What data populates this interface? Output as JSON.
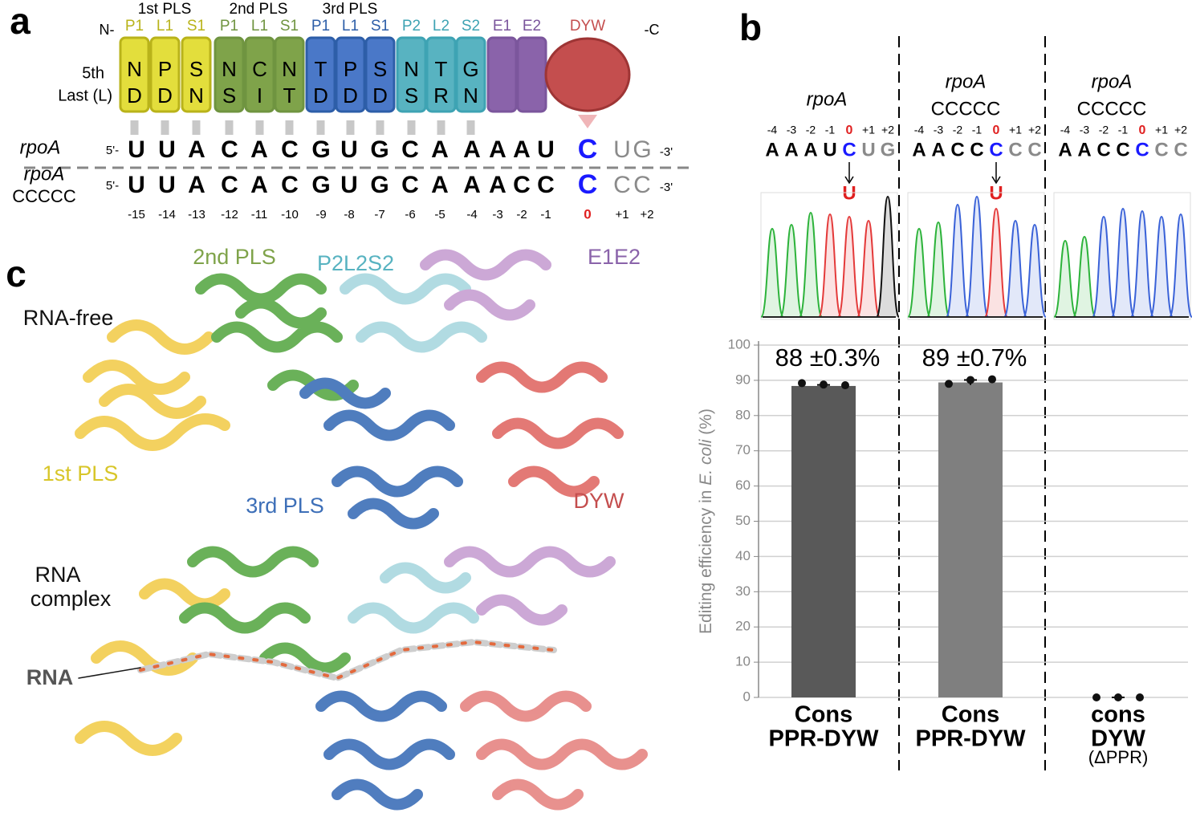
{
  "panel_labels": [
    "a",
    "b",
    "c"
  ],
  "panel_a": {
    "n_term": "N-",
    "c_term": "-C",
    "groups": [
      "1st PLS",
      "2nd PLS",
      "3rd PLS"
    ],
    "row_labels": [
      "5th",
      "Last (L)"
    ],
    "motifs": [
      {
        "name": "P1",
        "fifth": "N",
        "last": "D",
        "color": "#e3de3c"
      },
      {
        "name": "L1",
        "fifth": "P",
        "last": "D",
        "color": "#e3de3c"
      },
      {
        "name": "S1",
        "fifth": "S",
        "last": "N",
        "color": "#e3de3c"
      },
      {
        "name": "P1",
        "fifth": "N",
        "last": "S",
        "color": "#7fa34a"
      },
      {
        "name": "L1",
        "fifth": "C",
        "last": "I",
        "color": "#7fa34a"
      },
      {
        "name": "S1",
        "fifth": "N",
        "last": "T",
        "color": "#7fa34a"
      },
      {
        "name": "P1",
        "fifth": "T",
        "last": "D",
        "color": "#4a78c8"
      },
      {
        "name": "L1",
        "fifth": "P",
        "last": "D",
        "color": "#4a78c8"
      },
      {
        "name": "S1",
        "fifth": "S",
        "last": "D",
        "color": "#4a78c8"
      },
      {
        "name": "P2",
        "fifth": "N",
        "last": "S",
        "color": "#58b3c1"
      },
      {
        "name": "L2",
        "fifth": "T",
        "last": "R",
        "color": "#58b3c1"
      },
      {
        "name": "S2",
        "fifth": "G",
        "last": "N",
        "color": "#58b3c1"
      },
      {
        "name": "E1",
        "color": "#8a63aa"
      },
      {
        "name": "E2",
        "color": "#8a63aa"
      }
    ],
    "dyw": "DYW",
    "sequences": [
      {
        "name": "rpoA",
        "five": "5'-",
        "bases": [
          "U",
          "U",
          "A",
          "C",
          "A",
          "C",
          "G",
          "U",
          "G",
          "C",
          "A",
          "A",
          "A",
          "A",
          "U"
        ],
        "edit": "C",
        "tail": [
          "U",
          "G"
        ],
        "three": "-3'"
      },
      {
        "name": "rpoA",
        "sub": "CCCCC",
        "five": "5'-",
        "bases": [
          "U",
          "U",
          "A",
          "C",
          "A",
          "C",
          "G",
          "U",
          "G",
          "C",
          "A",
          "A",
          "A",
          "C",
          "C"
        ],
        "edit": "C",
        "tail": [
          "C",
          "C"
        ],
        "three": "-3'"
      }
    ],
    "positions": [
      "-15",
      "-14",
      "-13",
      "-12",
      "-11",
      "-10",
      "-9",
      "-8",
      "-7",
      "-6",
      "-5",
      "-4",
      "-3",
      "-2",
      "-1"
    ],
    "zero": "0",
    "plus": [
      "+1",
      "+2"
    ]
  },
  "panel_b": {
    "positions": [
      "-4",
      "-3",
      "-2",
      "-1",
      "0",
      "+1",
      "+2"
    ],
    "lanes": [
      {
        "name": "rpoA",
        "bases": [
          "A",
          "A",
          "A",
          "U",
          "C",
          "U",
          "G"
        ],
        "edited": "U"
      },
      {
        "name": "rpoA",
        "sub": "CCCCC",
        "bases": [
          "A",
          "A",
          "C",
          "C",
          "C",
          "C",
          "C"
        ],
        "edited": "U"
      },
      {
        "name": "rpoA",
        "sub": "CCCCC",
        "bases": [
          "A",
          "A",
          "C",
          "C",
          "C",
          "C",
          "C"
        ]
      }
    ]
  },
  "chart_data": {
    "type": "bar",
    "ylabel_parts": [
      "Editing efficiency in ",
      "E. coli",
      " (%)"
    ],
    "categories": [
      [
        "Cons",
        "PPR-DYW"
      ],
      [
        "Cons",
        "PPR-DYW"
      ],
      [
        "cons",
        "DYW",
        "(ΔPPR)"
      ]
    ],
    "values": [
      88.4,
      89.4,
      0
    ],
    "value_labels": [
      "88 ±0.3%",
      "89 ±0.7%",
      null
    ],
    "errors": [
      0.3,
      0.7,
      0
    ],
    "points": [
      [
        89.2,
        88.8,
        88.6
      ],
      [
        89.0,
        90.1,
        90.3
      ],
      [
        0,
        0,
        0
      ]
    ],
    "colors": [
      "#595959",
      "#7f7f7f",
      "#595959"
    ],
    "ylim": [
      0,
      100
    ],
    "yticks": [
      0,
      10,
      20,
      30,
      40,
      50,
      60,
      70,
      80,
      90,
      100
    ],
    "grid": true
  },
  "panel_c": {
    "labels": [
      "2nd PLS",
      "P2L2S2",
      "E1E2",
      "RNA-free",
      "1st PLS",
      "3rd PLS",
      "DYW",
      "RNA",
      "complex",
      "RNA"
    ]
  }
}
